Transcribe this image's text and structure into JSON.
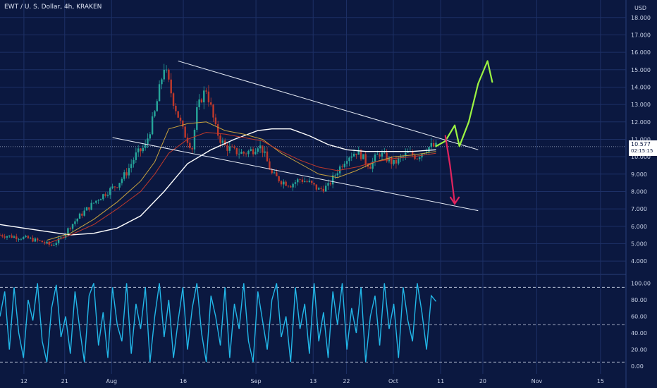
{
  "header": {
    "title": "EWT / U. S. Dollar, 4h, KRAKEN",
    "currency": "USD"
  },
  "last_price": {
    "value": "10.577",
    "countdown": "02:15:15"
  },
  "colors": {
    "background": "#0b1840",
    "grid": "#1d3066",
    "axis_text": "#c8d1e6",
    "candle_up": "#26a69a",
    "candle_down": "#c0392b",
    "ma_long": "#ffffff",
    "ma_mid": "#c7a23e",
    "ma_short": "#c0392b",
    "oscillator": "#22b7e8",
    "arrow_up": "#9cf442",
    "arrow_down": "#e0245e"
  },
  "chart_data": [
    {
      "type": "candlestick",
      "title": "EWT / U. S. Dollar, 4h, KRAKEN",
      "x_ticks": [
        "12",
        "21",
        "Aug",
        "16",
        "Sep",
        "13",
        "22",
        "Oct",
        "11",
        "20",
        "Nov",
        "15"
      ],
      "y_ticks": [
        "4.000",
        "5.000",
        "6.000",
        "7.000",
        "8.000",
        "9.000",
        "10.000",
        "11.000",
        "12.000",
        "13.000",
        "14.000",
        "15.000",
        "16.000",
        "17.000",
        "18.000"
      ],
      "ylim": [
        3.6,
        18.6
      ],
      "grid": true,
      "price_path": {
        "x_day": [
          0,
          3,
          6,
          9,
          11,
          13,
          15,
          17,
          19,
          21,
          23,
          25,
          27,
          29,
          31,
          33,
          35,
          37,
          39,
          41,
          42,
          43,
          44,
          45,
          46,
          47,
          48,
          50,
          52,
          54,
          55,
          56,
          57,
          58,
          60,
          62,
          64,
          66,
          68,
          70,
          72,
          74,
          76,
          77,
          78,
          79,
          80,
          81,
          82,
          83,
          84,
          85,
          87,
          89,
          91,
          92,
          93
        ],
        "close": [
          5.5,
          5.4,
          5.3,
          5.1,
          4.9,
          5.3,
          6.0,
          6.6,
          7.1,
          7.6,
          8.0,
          8.4,
          9.1,
          10.1,
          10.6,
          12.5,
          15.2,
          13.2,
          11.5,
          10.5,
          12.6,
          13.4,
          13.9,
          12.8,
          11.6,
          11.0,
          10.6,
          10.3,
          10.2,
          10.4,
          10.7,
          10.4,
          9.7,
          9.0,
          8.6,
          8.4,
          8.7,
          8.5,
          8.1,
          8.3,
          9.2,
          10.0,
          10.3,
          10.1,
          9.7,
          9.5,
          9.9,
          10.2,
          10.0,
          9.8,
          9.6,
          9.8,
          10.2,
          10.0,
          10.5,
          10.6,
          10.58
        ]
      },
      "moving_averages": [
        {
          "x_day": [
            0,
            5,
            10,
            15,
            20,
            25,
            30,
            35,
            40,
            45,
            50,
            55,
            58,
            62,
            66,
            70,
            74,
            78,
            83,
            88,
            93
          ],
          "values": [
            6.1,
            5.9,
            5.7,
            5.5,
            5.6,
            5.9,
            6.6,
            8.0,
            9.6,
            10.4,
            11.0,
            11.5,
            11.6,
            11.6,
            11.2,
            10.7,
            10.4,
            10.3,
            10.3,
            10.3,
            10.4
          ]
        },
        {
          "x_day": [
            10,
            15,
            20,
            25,
            30,
            33,
            36,
            40,
            44,
            48,
            52,
            56,
            60,
            64,
            68,
            72,
            76,
            80,
            84,
            88,
            93
          ],
          "values": [
            5.2,
            5.6,
            6.4,
            7.4,
            8.6,
            9.7,
            11.6,
            11.9,
            12.0,
            11.5,
            11.3,
            11.0,
            10.2,
            9.6,
            9.0,
            8.8,
            9.2,
            9.7,
            10.0,
            10.1,
            10.3
          ]
        },
        {
          "x_day": [
            10,
            15,
            20,
            25,
            30,
            33,
            36,
            40,
            44,
            48,
            52,
            56,
            60,
            64,
            68,
            72,
            76,
            80,
            84,
            88,
            93
          ],
          "values": [
            5.0,
            5.5,
            6.1,
            7.0,
            8.0,
            9.0,
            10.2,
            11.0,
            11.4,
            11.3,
            11.1,
            10.9,
            10.3,
            9.8,
            9.4,
            9.2,
            9.4,
            9.7,
            9.9,
            10.0,
            10.2
          ]
        }
      ],
      "trendlines": [
        {
          "x_day": [
            38,
            102
          ],
          "values": [
            15.5,
            10.4
          ]
        },
        {
          "x_day": [
            24,
            102
          ],
          "values": [
            11.1,
            6.9
          ]
        }
      ],
      "annotations": [
        {
          "kind": "arrow",
          "direction": "up",
          "x_day": [
            93,
            95,
            97,
            98,
            100,
            102,
            104,
            105
          ],
          "values": [
            10.6,
            10.9,
            11.8,
            10.6,
            12.0,
            14.2,
            15.5,
            14.3
          ]
        },
        {
          "kind": "arrow",
          "direction": "down",
          "x_day": [
            95,
            96,
            97
          ],
          "values": [
            11.2,
            9.5,
            7.3
          ]
        }
      ]
    },
    {
      "type": "line",
      "title": "",
      "y_ticks": [
        "0.00",
        "20.00",
        "40.00",
        "60.00",
        "80.00",
        "100.00"
      ],
      "ylim": [
        -5,
        108
      ],
      "reference_lines": [
        5,
        50,
        95
      ],
      "series": [
        {
          "x_day": [
            0,
            1,
            2,
            3,
            4,
            5,
            6,
            7,
            8,
            9,
            10,
            11,
            12,
            13,
            14,
            15,
            16,
            17,
            18,
            19,
            20,
            21,
            22,
            23,
            24,
            25,
            26,
            27,
            28,
            29,
            30,
            31,
            32,
            33,
            34,
            35,
            36,
            37,
            38,
            39,
            40,
            41,
            42,
            43,
            44,
            45,
            46,
            47,
            48,
            49,
            50,
            51,
            52,
            53,
            54,
            55,
            56,
            57,
            58,
            59,
            60,
            61,
            62,
            63,
            64,
            65,
            66,
            67,
            68,
            69,
            70,
            71,
            72,
            73,
            74,
            75,
            76,
            77,
            78,
            79,
            80,
            81,
            82,
            83,
            84,
            85,
            86,
            87,
            88,
            89,
            90,
            91,
            92,
            93
          ],
          "values": [
            60,
            90,
            20,
            95,
            40,
            10,
            80,
            55,
            100,
            30,
            5,
            70,
            98,
            35,
            60,
            15,
            90,
            45,
            5,
            85,
            100,
            25,
            65,
            10,
            95,
            50,
            30,
            100,
            15,
            75,
            45,
            95,
            5,
            60,
            100,
            35,
            80,
            10,
            55,
            95,
            20,
            70,
            100,
            40,
            5,
            85,
            60,
            25,
            95,
            10,
            75,
            45,
            100,
            30,
            5,
            90,
            55,
            20,
            80,
            100,
            35,
            60,
            5,
            95,
            45,
            75,
            15,
            100,
            30,
            65,
            10,
            90,
            50,
            100,
            20,
            70,
            40,
            95,
            5,
            60,
            85,
            25,
            100,
            45,
            75,
            10,
            95,
            55,
            30,
            100,
            65,
            20,
            85,
            78
          ]
        }
      ]
    }
  ]
}
